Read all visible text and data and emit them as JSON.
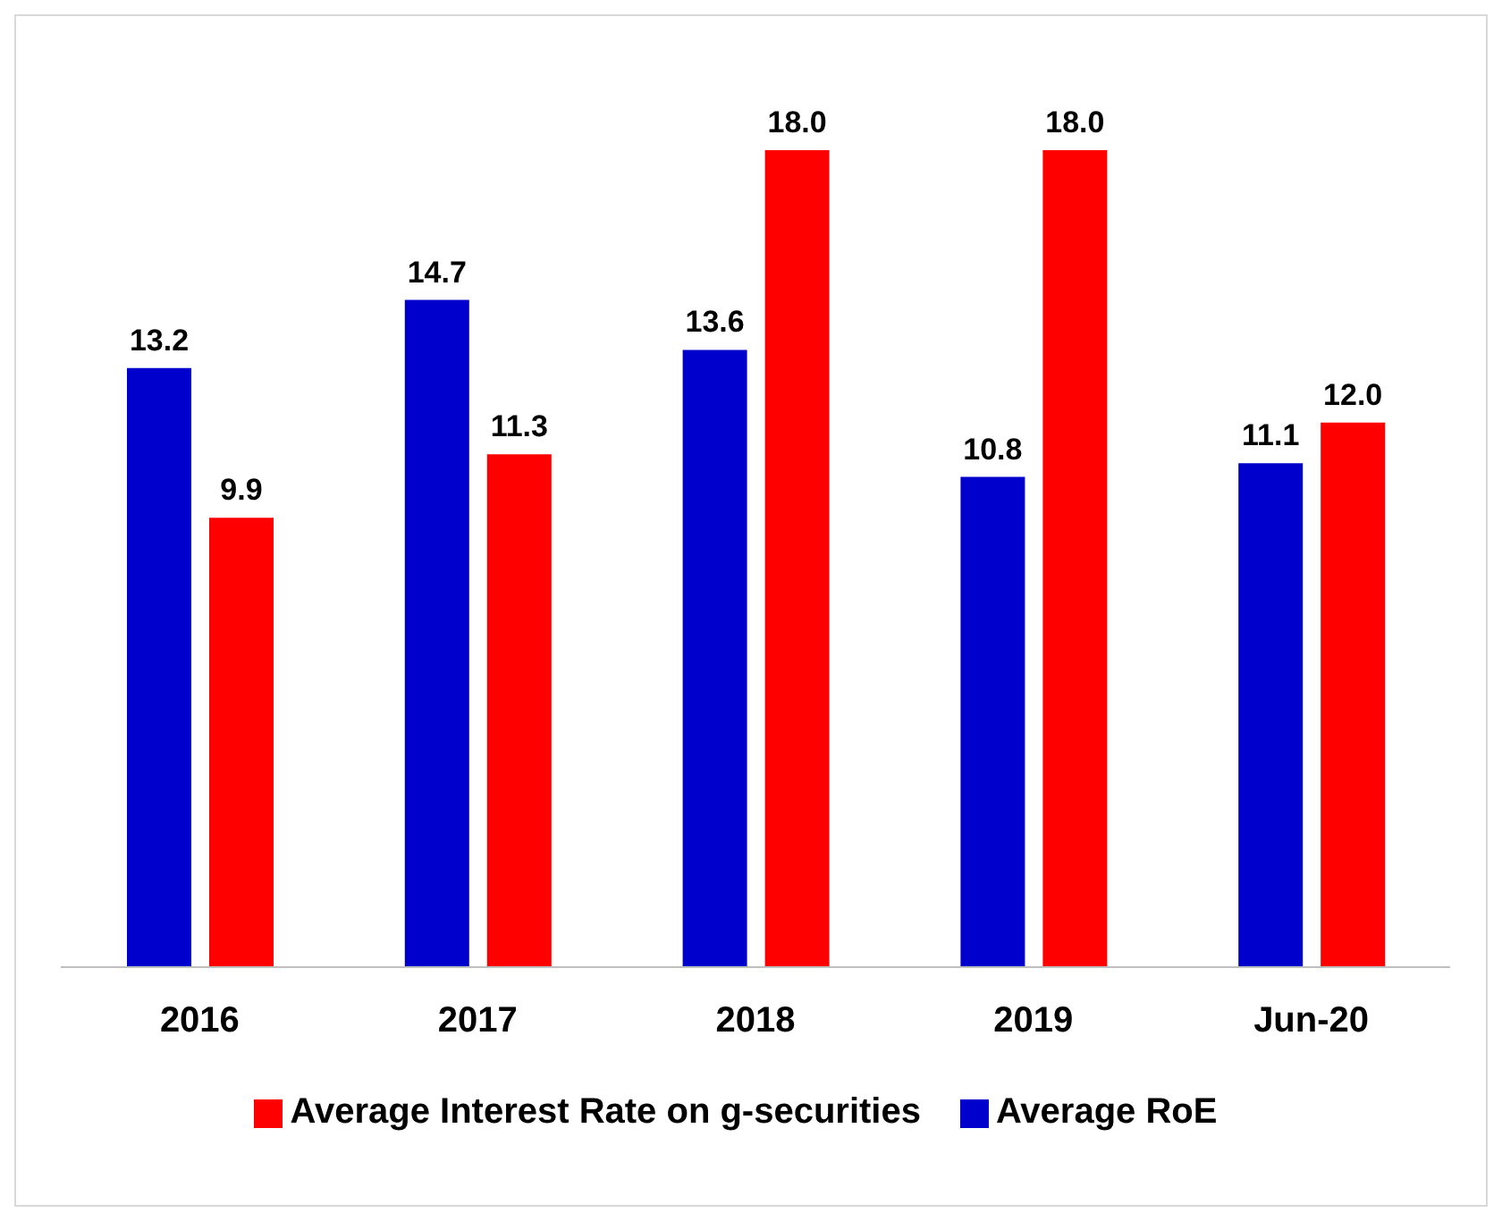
{
  "chart_data": {
    "type": "bar",
    "categories": [
      "2016",
      "2017",
      "2018",
      "2019",
      "Jun-20"
    ],
    "series": [
      {
        "name": "Average RoE",
        "color": "#0000cc",
        "values": [
          13.2,
          14.7,
          13.6,
          10.8,
          11.1
        ],
        "value_labels": [
          "13.2",
          "14.7",
          "13.6",
          "10.8",
          "11.1"
        ]
      },
      {
        "name": "Average Interest Rate on g-securities",
        "color": "#ff0000",
        "values": [
          9.9,
          11.3,
          18.0,
          18.0,
          12.0
        ],
        "value_labels": [
          "9.9",
          "11.3",
          "18.0",
          "18.0",
          "12.0"
        ]
      }
    ],
    "legend": "bottom"
  }
}
